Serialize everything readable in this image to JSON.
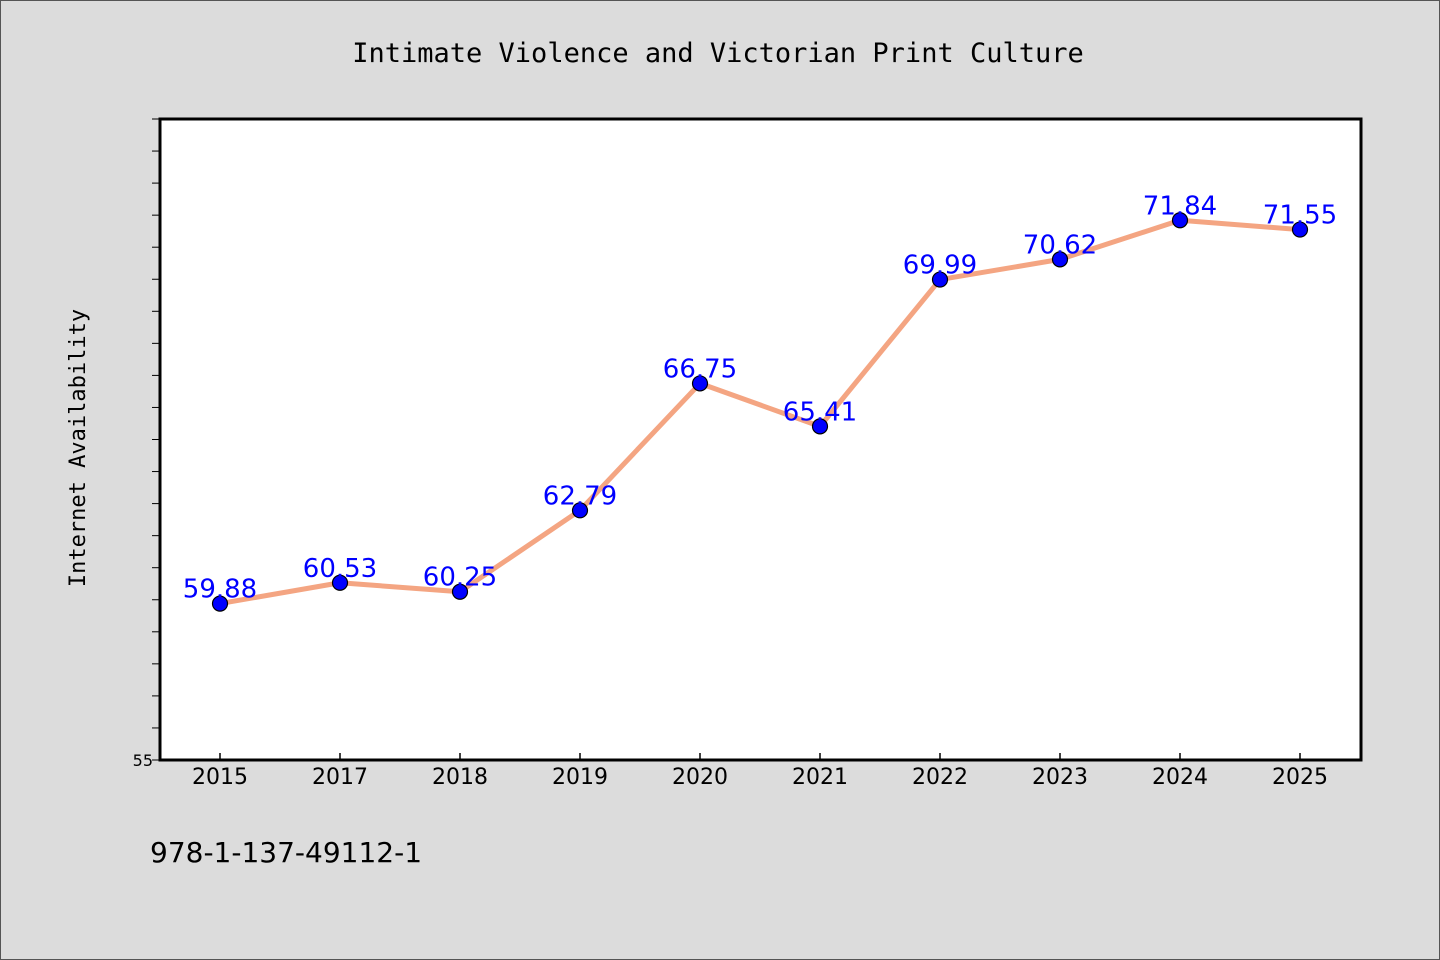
{
  "chart_data": {
    "type": "line",
    "title": "Intimate Violence and Victorian Print Culture",
    "ylabel": "Internet Availability",
    "xlabel": "",
    "categories": [
      "2015",
      "2017",
      "2018",
      "2019",
      "2020",
      "2021",
      "2022",
      "2023",
      "2024",
      "2025"
    ],
    "series": [
      {
        "values": [
          59.88,
          60.53,
          60.25,
          62.79,
          66.75,
          65.41,
          69.99,
          70.62,
          71.84,
          71.55
        ],
        "labels": [
          "59.88",
          "60.53",
          "60.25",
          "62.79",
          "66.75",
          "65.41",
          "69.99",
          "70.62",
          "71.84",
          "71.55"
        ]
      }
    ],
    "ylim": [
      55,
      75
    ],
    "y_tick_label": "55",
    "grid": false,
    "colors": {
      "line": "#f4a582",
      "marker": "#0000ff",
      "label": "#0000ff",
      "background": "#dcdcdc",
      "plot_background": "#ffffff"
    }
  },
  "footer": {
    "text": "978-1-137-49112-1"
  }
}
